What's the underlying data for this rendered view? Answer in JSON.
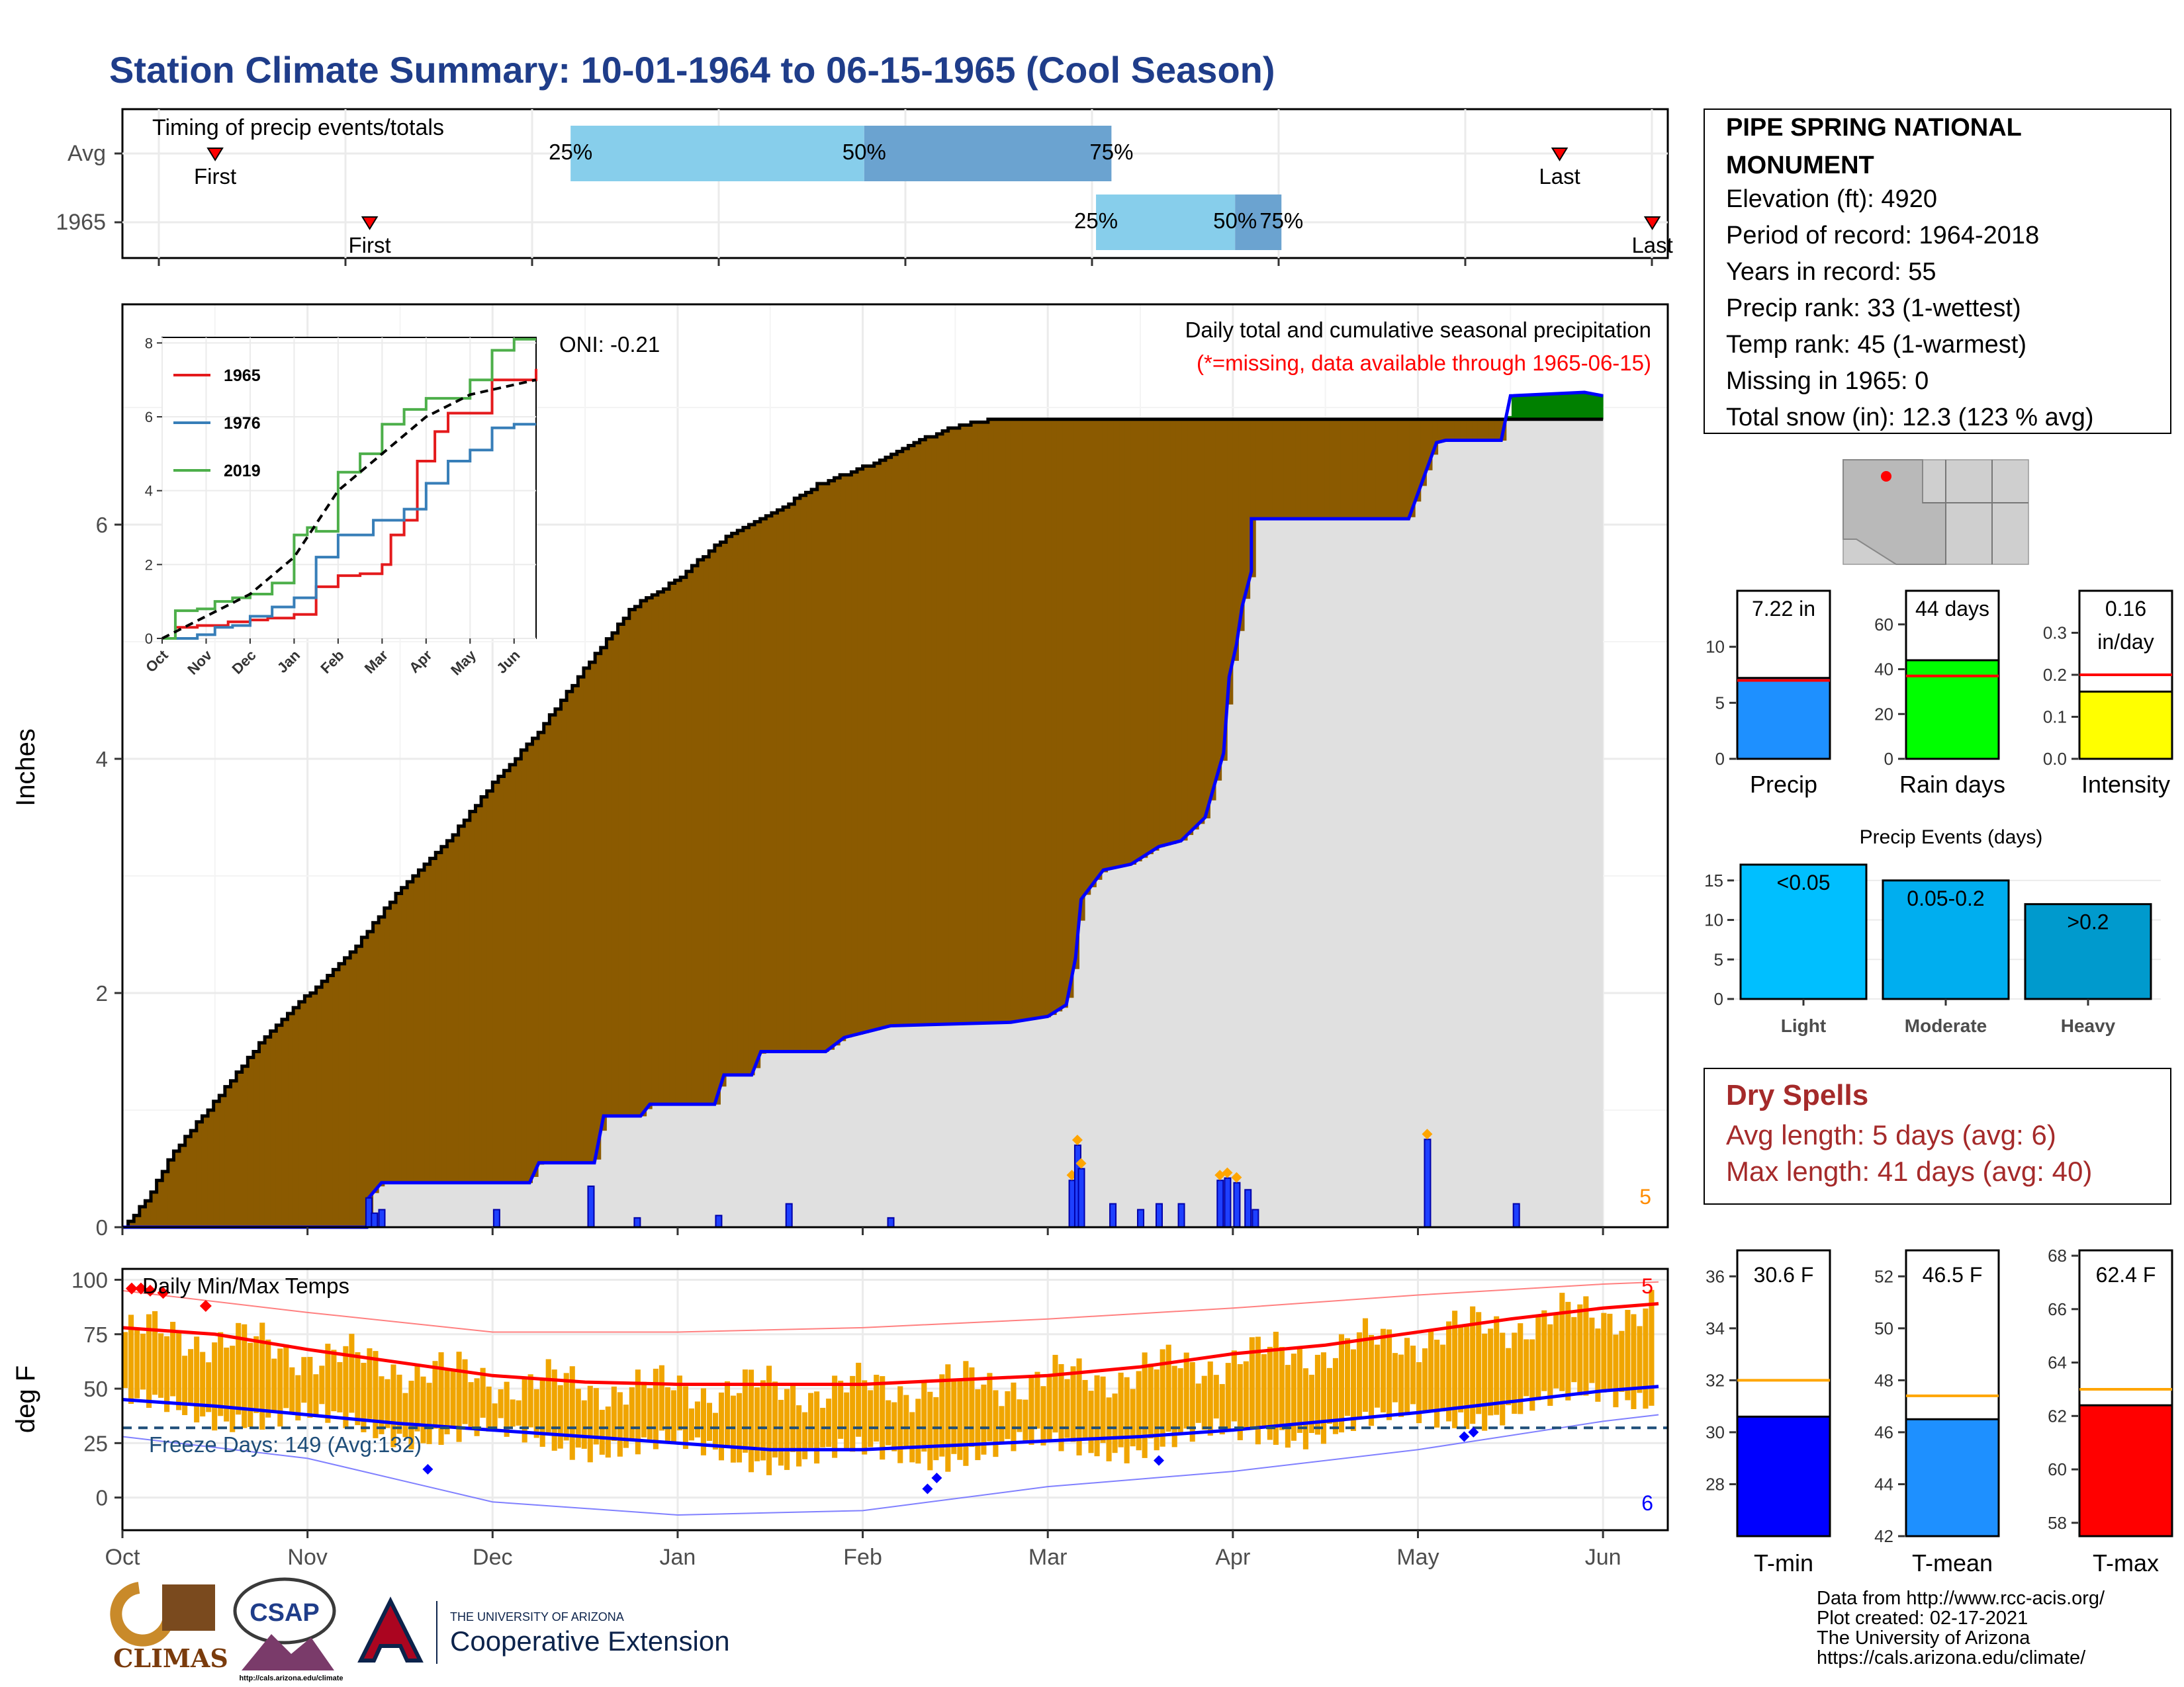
{
  "title": "Station Climate Summary: 10-01-1964 to 06-15-1965 (Cool Season)",
  "timing": {
    "label": "Timing of precip events/totals",
    "rows": [
      {
        "name": "Avg",
        "first_label": "First",
        "last_label": "Last",
        "first": 0.06,
        "p25": 0.29,
        "p50": 0.48,
        "p75": 0.64,
        "last": 0.93
      },
      {
        "name": "1965",
        "first_label": "First",
        "last_label": "Last",
        "first": 0.16,
        "p25": 0.63,
        "p50": 0.72,
        "p75": 0.75,
        "last": 0.99
      }
    ],
    "pct_labels": [
      "25%",
      "50%",
      "75%"
    ]
  },
  "chart_data": [
    {
      "type": "area",
      "title": "Daily total and cumulative seasonal precipitation",
      "subtitle": "(*=missing, data available through 1965-06-15)",
      "ylabel": "Inches",
      "ylim": [
        0,
        8.0
      ],
      "yticks": [
        0,
        2,
        4,
        6
      ],
      "months": [
        "Oct",
        "Nov",
        "Dec",
        "Jan",
        "Feb",
        "Mar",
        "Apr",
        "May",
        "Jun"
      ],
      "oni": "ONI: -0.21",
      "corner_count": "5",
      "avg_cumulative": [
        [
          0,
          0
        ],
        [
          0.13,
          0.25
        ],
        [
          0.25,
          0.6
        ],
        [
          0.5,
          1.1
        ],
        [
          0.75,
          1.6
        ],
        [
          1.0,
          2.0
        ],
        [
          1.25,
          2.4
        ],
        [
          1.5,
          2.9
        ],
        [
          1.75,
          3.3
        ],
        [
          2.0,
          3.8
        ],
        [
          2.25,
          4.25
        ],
        [
          2.5,
          4.8
        ],
        [
          2.75,
          5.3
        ],
        [
          3.0,
          5.55
        ],
        [
          3.25,
          5.9
        ],
        [
          3.5,
          6.1
        ],
        [
          3.75,
          6.35
        ],
        [
          4.0,
          6.5
        ],
        [
          4.25,
          6.7
        ],
        [
          4.5,
          6.85
        ],
        [
          4.65,
          6.9
        ]
      ],
      "obs_cumulative": [
        [
          0,
          0
        ],
        [
          1.32,
          0
        ],
        [
          1.33,
          0.25
        ],
        [
          1.4,
          0.38
        ],
        [
          2.2,
          0.38
        ],
        [
          2.25,
          0.55
        ],
        [
          2.55,
          0.55
        ],
        [
          2.6,
          0.95
        ],
        [
          2.8,
          0.95
        ],
        [
          2.85,
          1.05
        ],
        [
          3.2,
          1.05
        ],
        [
          3.25,
          1.3
        ],
        [
          3.4,
          1.3
        ],
        [
          3.45,
          1.5
        ],
        [
          3.8,
          1.5
        ],
        [
          3.9,
          1.62
        ],
        [
          4.05,
          1.68
        ],
        [
          4.15,
          1.72
        ],
        [
          4.8,
          1.75
        ],
        [
          5.0,
          1.8
        ],
        [
          5.1,
          1.9
        ],
        [
          5.15,
          2.3
        ],
        [
          5.18,
          2.8
        ],
        [
          5.3,
          3.05
        ],
        [
          5.45,
          3.1
        ],
        [
          5.6,
          3.25
        ],
        [
          5.72,
          3.3
        ],
        [
          5.85,
          3.5
        ],
        [
          5.95,
          4.05
        ],
        [
          5.98,
          4.7
        ],
        [
          6.02,
          4.98
        ],
        [
          6.05,
          5.3
        ],
        [
          6.1,
          5.6
        ],
        [
          6.1,
          6.05
        ],
        [
          6.5,
          6.05
        ],
        [
          6.95,
          6.05
        ],
        [
          7.1,
          6.7
        ],
        [
          7.15,
          6.72
        ],
        [
          7.45,
          6.72
        ],
        [
          7.5,
          7.1
        ],
        [
          7.9,
          7.13
        ],
        [
          8.0,
          7.1
        ]
      ],
      "daily_bars": [
        [
          1.33,
          0.25
        ],
        [
          1.36,
          0.12
        ],
        [
          1.4,
          0.15
        ],
        [
          2.02,
          0.15
        ],
        [
          2.53,
          0.35
        ],
        [
          2.78,
          0.08
        ],
        [
          3.22,
          0.1
        ],
        [
          3.6,
          0.2
        ],
        [
          4.15,
          0.08
        ],
        [
          5.13,
          0.4
        ],
        [
          5.16,
          0.7
        ],
        [
          5.18,
          0.5
        ],
        [
          5.35,
          0.2
        ],
        [
          5.5,
          0.15
        ],
        [
          5.6,
          0.2
        ],
        [
          5.72,
          0.2
        ],
        [
          5.93,
          0.4
        ],
        [
          5.97,
          0.42
        ],
        [
          6.02,
          0.38
        ],
        [
          6.08,
          0.32
        ],
        [
          6.12,
          0.15
        ],
        [
          7.05,
          0.75
        ],
        [
          7.53,
          0.2
        ]
      ],
      "series": [
        {
          "name": "Cumulative seasonal precipitation 1965",
          "color": "#0000ff"
        },
        {
          "name": "Average cumulative",
          "color": "#000000"
        },
        {
          "name": "Deficit",
          "color": "#8b5a00"
        },
        {
          "name": "Surplus",
          "color": "#008000"
        }
      ]
    },
    {
      "type": "line",
      "xlim": [
        0,
        8.5
      ],
      "ylim": [
        0,
        8
      ],
      "xticks": [
        "Oct",
        "Nov",
        "Dec",
        "Jan",
        "Feb",
        "Mar",
        "Apr",
        "May",
        "Jun"
      ],
      "yticks": [
        0,
        2,
        4,
        6,
        8
      ],
      "series": [
        {
          "name": "1965",
          "color": "#e41a1c",
          "values": [
            [
              0,
              0
            ],
            [
              0.3,
              0.3
            ],
            [
              0.8,
              0.35
            ],
            [
              1.3,
              0.35
            ],
            [
              1.5,
              0.45
            ],
            [
              2.0,
              0.5
            ],
            [
              2.4,
              0.55
            ],
            [
              3.0,
              0.65
            ],
            [
              3.5,
              1.4
            ],
            [
              4.0,
              1.7
            ],
            [
              4.5,
              1.75
            ],
            [
              5.0,
              2.0
            ],
            [
              5.2,
              2.8
            ],
            [
              5.5,
              3.2
            ],
            [
              5.8,
              4.8
            ],
            [
              6.2,
              5.6
            ],
            [
              6.5,
              6.1
            ],
            [
              7.2,
              6.1
            ],
            [
              7.5,
              7.0
            ],
            [
              8.5,
              7.3
            ]
          ]
        },
        {
          "name": "1976",
          "color": "#377eb8",
          "values": [
            [
              0,
              0
            ],
            [
              0.8,
              0.1
            ],
            [
              1.2,
              0.3
            ],
            [
              1.6,
              0.35
            ],
            [
              2.0,
              0.6
            ],
            [
              2.5,
              0.85
            ],
            [
              3.0,
              1.1
            ],
            [
              3.5,
              2.2
            ],
            [
              4.0,
              2.8
            ],
            [
              4.8,
              3.2
            ],
            [
              5.5,
              3.5
            ],
            [
              6.0,
              4.2
            ],
            [
              6.5,
              4.8
            ],
            [
              7.0,
              5.1
            ],
            [
              7.5,
              5.7
            ],
            [
              8.0,
              5.8
            ],
            [
              8.5,
              5.8
            ]
          ]
        },
        {
          "name": "2019",
          "color": "#4daf4a",
          "values": [
            [
              0,
              0
            ],
            [
              0.3,
              0.75
            ],
            [
              0.8,
              0.8
            ],
            [
              1.2,
              1.0
            ],
            [
              1.6,
              1.1
            ],
            [
              2.0,
              1.2
            ],
            [
              2.5,
              1.5
            ],
            [
              3.0,
              2.8
            ],
            [
              3.3,
              3.0
            ],
            [
              3.5,
              2.9
            ],
            [
              4.0,
              4.5
            ],
            [
              4.5,
              5.0
            ],
            [
              5.0,
              5.8
            ],
            [
              5.5,
              6.2
            ],
            [
              6.0,
              6.5
            ],
            [
              6.5,
              6.5
            ],
            [
              7.0,
              7.0
            ],
            [
              7.5,
              7.8
            ],
            [
              8.0,
              8.1
            ],
            [
              8.5,
              8.1
            ]
          ]
        },
        {
          "name": "Average",
          "color": "#000000",
          "values": [
            [
              0,
              0
            ],
            [
              0.5,
              0.3
            ],
            [
              1.0,
              0.6
            ],
            [
              2.0,
              1.2
            ],
            [
              3.0,
              2.2
            ],
            [
              4.0,
              4.0
            ],
            [
              5.0,
              5.0
            ],
            [
              6.0,
              6.0
            ],
            [
              7.0,
              6.6
            ],
            [
              8.5,
              7.0
            ]
          ]
        }
      ]
    },
    {
      "type": "bar",
      "panel": "totals",
      "categories": [
        "Precip",
        "Rain days",
        "Intensity"
      ],
      "labels": [
        "7.22 in",
        "44 days",
        "0.16\nin/day"
      ],
      "values": [
        7.22,
        44,
        0.16
      ],
      "averages": [
        7.0,
        37,
        0.2
      ],
      "colors": [
        "#1e90ff",
        "#00ff00",
        "#ffff00"
      ],
      "yticks": [
        [
          0,
          5,
          10
        ],
        [
          0,
          20,
          40,
          60
        ],
        [
          0.0,
          0.1,
          0.2,
          0.3
        ]
      ],
      "ylims": [
        [
          0,
          15
        ],
        [
          0,
          75
        ],
        [
          0,
          0.4
        ]
      ]
    },
    {
      "type": "bar",
      "title": "Precip Events (days)",
      "categories": [
        "Light",
        "Moderate",
        "Heavy"
      ],
      "labels": [
        "<0.05",
        "0.05-0.2",
        ">0.2"
      ],
      "values": [
        17,
        15,
        12
      ],
      "ylim": [
        0,
        18
      ],
      "yticks": [
        0,
        5,
        10,
        15
      ],
      "colors": [
        "#00bfff",
        "#00aeef",
        "#009acd"
      ]
    },
    {
      "type": "line",
      "title": "Daily Min/Max Temps",
      "ylabel": "deg F",
      "ylim": [
        -15,
        105
      ],
      "yticks": [
        0,
        25,
        50,
        75,
        100
      ],
      "months": [
        "Oct",
        "Nov",
        "Dec",
        "Jan",
        "Feb",
        "Mar",
        "Apr",
        "May",
        "Jun"
      ],
      "freeze_label": "Freeze Days: 149 (Avg:132)",
      "freeze_line": 32,
      "count_high": "5",
      "count_low": "6",
      "avg_max": [
        [
          0,
          78
        ],
        [
          0.5,
          75
        ],
        [
          1,
          68
        ],
        [
          1.5,
          62
        ],
        [
          2,
          56
        ],
        [
          2.5,
          53
        ],
        [
          3,
          52
        ],
        [
          3.5,
          52
        ],
        [
          4,
          52
        ],
        [
          4.5,
          54
        ],
        [
          5,
          56
        ],
        [
          5.5,
          60
        ],
        [
          6,
          66
        ],
        [
          6.5,
          70
        ],
        [
          7,
          76
        ],
        [
          7.5,
          82
        ],
        [
          8,
          87
        ],
        [
          8.3,
          89
        ]
      ],
      "avg_min": [
        [
          0,
          45
        ],
        [
          0.5,
          42
        ],
        [
          1,
          38
        ],
        [
          1.5,
          34
        ],
        [
          2,
          31
        ],
        [
          2.5,
          28
        ],
        [
          3,
          25
        ],
        [
          3.5,
          22
        ],
        [
          4,
          22
        ],
        [
          4.5,
          24
        ],
        [
          5,
          26
        ],
        [
          5.5,
          28
        ],
        [
          6,
          31
        ],
        [
          6.5,
          35
        ],
        [
          7,
          39
        ],
        [
          7.5,
          44
        ],
        [
          8,
          49
        ],
        [
          8.3,
          51
        ]
      ],
      "record_max": [
        [
          0,
          95
        ],
        [
          1,
          85
        ],
        [
          2,
          76
        ],
        [
          3,
          76
        ],
        [
          4,
          78
        ],
        [
          5,
          82
        ],
        [
          6,
          87
        ],
        [
          7,
          93
        ],
        [
          8,
          98
        ],
        [
          8.3,
          99
        ]
      ],
      "record_min": [
        [
          0,
          28
        ],
        [
          1,
          18
        ],
        [
          2,
          -2
        ],
        [
          3,
          -8
        ],
        [
          4,
          -6
        ],
        [
          5,
          5
        ],
        [
          6,
          12
        ],
        [
          7,
          22
        ],
        [
          8,
          35
        ],
        [
          8.3,
          38
        ]
      ],
      "colors": {
        "bars": "#f0a500",
        "avg_max": "#ff0000",
        "avg_min": "#0000ff",
        "freeze": "#1f4e79"
      }
    },
    {
      "type": "bar",
      "panel": "temperature",
      "categories": [
        "T-min",
        "T-mean",
        "T-max"
      ],
      "labels": [
        "30.6 F",
        "46.5 F",
        "62.4 F"
      ],
      "values": [
        30.6,
        46.5,
        62.4
      ],
      "averages": [
        32.0,
        47.4,
        63.0
      ],
      "colors": [
        "#0000ff",
        "#1e90ff",
        "#ff0000"
      ],
      "ylims": [
        [
          26,
          37
        ],
        [
          42,
          53
        ],
        [
          57.5,
          68.2
        ]
      ],
      "yticks": [
        [
          28,
          30,
          32,
          34,
          36
        ],
        [
          42,
          44,
          46,
          48,
          50,
          52
        ],
        [
          58,
          60,
          62,
          64,
          66,
          68
        ]
      ]
    }
  ],
  "station": {
    "name": "PIPE SPRING NATIONAL MONUMENT",
    "lines": [
      "Elevation (ft): 4920",
      "Period of record: 1964-2018",
      "Years in record: 55",
      "Precip rank: 33 (1-wettest)",
      "Temp rank: 45 (1-warmest)",
      "Missing in 1965: 0",
      "Total snow (in): 12.3 (123 % avg)"
    ]
  },
  "dry_spells": {
    "title": "Dry Spells",
    "avg": "Avg length: 5 days (avg: 6)",
    "max": "Max length: 41 days (avg: 40)"
  },
  "footer": {
    "lines": [
      "Data from http://www.rcc-acis.org/",
      "Plot created: 02-17-2021",
      "The University of Arizona",
      "https://cals.arizona.edu/climate/"
    ]
  },
  "logos": {
    "climas": "CLIMAS",
    "csap": "CSAP",
    "csap_url": "http://cals.arizona.edu/climate",
    "ua_small": "THE UNIVERSITY OF ARIZONA",
    "ua_big": "Cooperative Extension"
  },
  "colors": {
    "title": "#1f3d8a",
    "dry_spells": "#a52a2a",
    "deficit": "#8b5a00",
    "surplus": "#008000",
    "gray_area": "#e0e0e0"
  }
}
